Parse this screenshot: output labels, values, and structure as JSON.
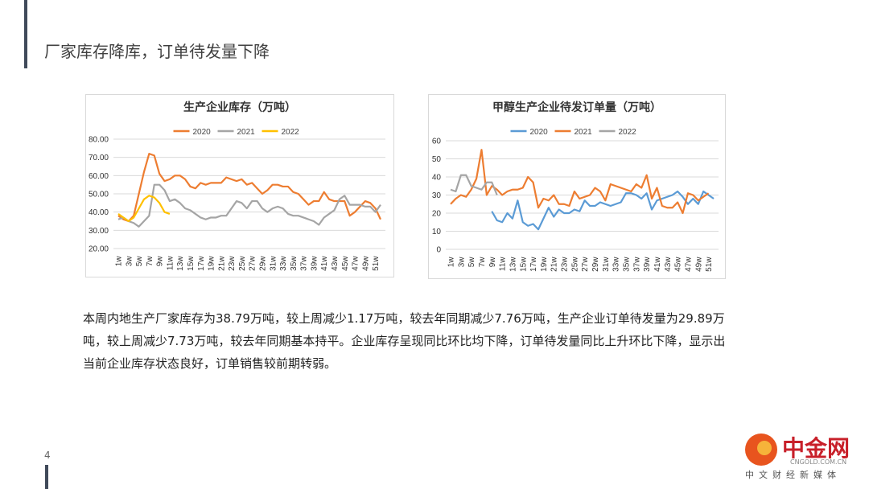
{
  "header": {
    "title": "厂家库存降库，订单待发量下降"
  },
  "chart_data": [
    {
      "type": "line",
      "title": "生产企业库存（万吨）",
      "categories": [
        "1w",
        null,
        "3w",
        null,
        "5w",
        null,
        "7w",
        null,
        "9w",
        null,
        "11w",
        null,
        "13w",
        null,
        "15w",
        null,
        "17w",
        null,
        "19w",
        null,
        "21w",
        null,
        "23w",
        null,
        "25w",
        null,
        "27w",
        null,
        "29w",
        null,
        "31w",
        null,
        "33w",
        null,
        "35w",
        null,
        "37w",
        null,
        "39w",
        null,
        "41w",
        null,
        "43w",
        null,
        "45w",
        null,
        "47w",
        null,
        "49w",
        null,
        "51w",
        null
      ],
      "series": [
        {
          "name": "2020",
          "color": "#ed7d31",
          "values": [
            38,
            36,
            35,
            38,
            50,
            62,
            72,
            71,
            61,
            57,
            58,
            60,
            60,
            58,
            54,
            53,
            56,
            55,
            56,
            56,
            56,
            59,
            58,
            57,
            58,
            55,
            56,
            53,
            50,
            52,
            55,
            55,
            54,
            54,
            51,
            50,
            47,
            44,
            46,
            46,
            51,
            47,
            46,
            46,
            46,
            38,
            40,
            43,
            46,
            45,
            42,
            36
          ]
        },
        {
          "name": "2021",
          "color": "#a5a5a5",
          "values": [
            36,
            37,
            35,
            34,
            32,
            35,
            38,
            55,
            55,
            52,
            46,
            47,
            45,
            42,
            41,
            39,
            37,
            36,
            37,
            37,
            38,
            38,
            42,
            46,
            45,
            42,
            46,
            46,
            42,
            40,
            42,
            43,
            42,
            39,
            38,
            38,
            37,
            36,
            35,
            33,
            37,
            39,
            41,
            47,
            49,
            44,
            44,
            44,
            43,
            43,
            40,
            44
          ]
        },
        {
          "name": "2022",
          "color": "#ffc000",
          "values": [
            39,
            37,
            35,
            37,
            42,
            47,
            49,
            48,
            45,
            40,
            39,
            null,
            null,
            null,
            null,
            null,
            null,
            null,
            null,
            null,
            null,
            null,
            null,
            null,
            null,
            null,
            null,
            null,
            null,
            null,
            null,
            null,
            null,
            null,
            null,
            null,
            null,
            null,
            null,
            null,
            null,
            null,
            null,
            null,
            null,
            null,
            null,
            null,
            null,
            null,
            null,
            null
          ]
        }
      ],
      "ylim": [
        20,
        80
      ],
      "yticks": [
        {
          "value": 20,
          "label": "20.00"
        },
        {
          "value": 30,
          "label": "30.00"
        },
        {
          "value": 40,
          "label": "40.00"
        },
        {
          "value": 50,
          "label": "50.00"
        },
        {
          "value": 60,
          "label": "60.00"
        },
        {
          "value": 70,
          "label": "70.00"
        },
        {
          "value": 80,
          "label": "80.00"
        }
      ],
      "grid": true,
      "legend": "top"
    },
    {
      "type": "line",
      "title": "甲醇生产企业待发订单量（万吨）",
      "categories": [
        "1w",
        null,
        "3w",
        null,
        "5w",
        null,
        "7w",
        null,
        "9w",
        null,
        "11w",
        null,
        "13w",
        null,
        "15w",
        null,
        "17w",
        null,
        "19w",
        null,
        "21w",
        null,
        "23w",
        null,
        "25w",
        null,
        "27w",
        null,
        "29w",
        null,
        "31w",
        null,
        "33w",
        null,
        "35w",
        null,
        "37w",
        null,
        "39w",
        null,
        "41w",
        null,
        "43w",
        null,
        "45w",
        null,
        "47w",
        null,
        "49w",
        null,
        "51w",
        null
      ],
      "series": [
        {
          "name": "2020",
          "color": "#5b9bd5",
          "values": [
            null,
            null,
            null,
            null,
            null,
            null,
            null,
            null,
            21,
            16,
            15,
            20,
            17,
            27,
            15,
            13,
            14,
            11,
            17,
            23,
            18,
            22,
            20,
            20,
            22,
            21,
            27,
            24,
            24,
            26,
            25,
            24,
            25,
            26,
            31,
            31,
            30,
            28,
            31,
            22,
            27,
            28,
            29,
            30,
            32,
            29,
            25,
            28,
            25,
            32,
            30,
            28
          ]
        },
        {
          "name": "2021",
          "color": "#ed7d31",
          "values": [
            25,
            28,
            30,
            29,
            33,
            39,
            55,
            30,
            35,
            33,
            30,
            32,
            33,
            33,
            34,
            40,
            37,
            23,
            28,
            27,
            30,
            25,
            25,
            24,
            32,
            28,
            29,
            30,
            34,
            32,
            27,
            36,
            35,
            34,
            33,
            32,
            36,
            34,
            41,
            28,
            34,
            24,
            23,
            23,
            26,
            20,
            31,
            30,
            27,
            29,
            31,
            null
          ]
        },
        {
          "name": "2022",
          "color": "#a5a5a5",
          "values": [
            33,
            32,
            41,
            41,
            35,
            34,
            33,
            37,
            37,
            30,
            null,
            null,
            null,
            null,
            null,
            null,
            null,
            null,
            null,
            null,
            null,
            null,
            null,
            null,
            null,
            null,
            null,
            null,
            null,
            null,
            null,
            null,
            null,
            null,
            null,
            null,
            null,
            null,
            null,
            null,
            null,
            null,
            null,
            null,
            null,
            null,
            null,
            null,
            null,
            null,
            null,
            null
          ]
        }
      ],
      "ylim": [
        0,
        60
      ],
      "yticks": [
        0,
        10,
        20,
        30,
        40,
        50,
        60
      ],
      "grid": true,
      "legend": "top"
    }
  ],
  "body": {
    "text": "本周内地生产厂家库存为38.79万吨，较上周减少1.17万吨，较去年同期减少7.76万吨，生产企业订单待发量为29.89万吨，较上周减少7.73万吨，较去年同期基本持平。企业库存呈现同比环比均下降，订单待发量同比上升环比下降，显示出当前企业库存状态良好，订单销售较前期转弱。"
  },
  "page_number": "4",
  "logo": {
    "name": "中金网",
    "site": "CNGOLD.COM.CN",
    "slogan": "中文财经新媒体"
  }
}
